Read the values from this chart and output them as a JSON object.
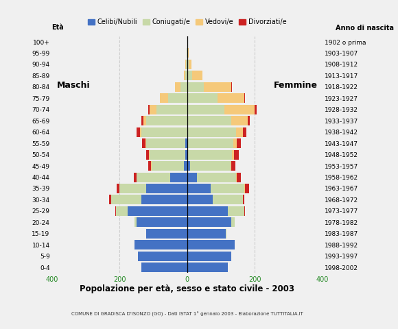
{
  "age_groups": [
    "0-4",
    "5-9",
    "10-14",
    "15-19",
    "20-24",
    "25-29",
    "30-34",
    "35-39",
    "40-44",
    "45-49",
    "50-54",
    "55-59",
    "60-64",
    "65-69",
    "70-74",
    "75-79",
    "80-84",
    "85-89",
    "90-94",
    "95-99",
    "100+"
  ],
  "birth_years": [
    "1998-2002",
    "1993-1997",
    "1988-1992",
    "1983-1987",
    "1978-1982",
    "1973-1977",
    "1968-1972",
    "1963-1967",
    "1958-1962",
    "1953-1957",
    "1948-1952",
    "1943-1947",
    "1938-1942",
    "1933-1937",
    "1928-1932",
    "1923-1927",
    "1918-1922",
    "1913-1917",
    "1908-1912",
    "1903-1907",
    "1902 o prima"
  ],
  "males": {
    "celibe": [
      135,
      145,
      155,
      120,
      150,
      175,
      135,
      120,
      50,
      10,
      5,
      5,
      0,
      0,
      0,
      0,
      0,
      0,
      0,
      0,
      0
    ],
    "coniugato": [
      0,
      0,
      0,
      0,
      5,
      35,
      90,
      80,
      100,
      95,
      105,
      115,
      135,
      120,
      90,
      55,
      20,
      5,
      3,
      1,
      0
    ],
    "vedovo": [
      0,
      0,
      0,
      0,
      0,
      0,
      0,
      0,
      0,
      1,
      2,
      3,
      5,
      10,
      20,
      25,
      15,
      5,
      2,
      0,
      0
    ],
    "divorziato": [
      0,
      0,
      0,
      0,
      0,
      2,
      5,
      8,
      8,
      8,
      8,
      10,
      10,
      5,
      5,
      0,
      0,
      0,
      0,
      0,
      0
    ]
  },
  "females": {
    "celibe": [
      120,
      130,
      140,
      115,
      130,
      120,
      75,
      70,
      30,
      8,
      3,
      2,
      0,
      0,
      0,
      0,
      0,
      0,
      0,
      0,
      0
    ],
    "coniugato": [
      0,
      0,
      0,
      2,
      10,
      50,
      90,
      100,
      115,
      120,
      130,
      135,
      145,
      130,
      110,
      90,
      50,
      15,
      5,
      2,
      0
    ],
    "vedovo": [
      0,
      0,
      0,
      0,
      0,
      0,
      0,
      1,
      2,
      3,
      5,
      10,
      20,
      50,
      90,
      80,
      80,
      30,
      8,
      2,
      0
    ],
    "divorziato": [
      0,
      0,
      0,
      0,
      0,
      2,
      5,
      12,
      12,
      12,
      15,
      12,
      10,
      5,
      5,
      2,
      2,
      0,
      0,
      0,
      0
    ]
  },
  "colors": {
    "celibe": "#4472c4",
    "coniugato": "#c8d9a8",
    "vedovo": "#f5c97a",
    "divorziato": "#cc2222"
  },
  "legend_labels": [
    "Celibi/Nubili",
    "Coniugati/e",
    "Vedovi/e",
    "Divorziati/e"
  ],
  "title": "Popolazione per età, sesso e stato civile - 2003",
  "subtitle": "COMUNE DI GRADISCA D'ISONZO (GO) - Dati ISTAT 1° gennaio 2003 - Elaborazione TUTTITALIA.IT",
  "xlim": 400,
  "ylabel_left": "Età",
  "ylabel_right": "Anno di nascita",
  "maschi_label": "Maschi",
  "femmine_label": "Femmine",
  "bg_color": "#f0f0f0",
  "bar_height": 0.85
}
